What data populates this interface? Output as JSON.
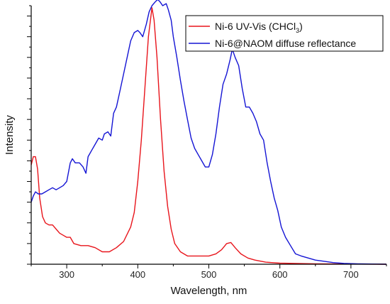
{
  "chart_data": {
    "type": "line",
    "xlabel": "Wavelength, nm",
    "ylabel": "Intensity",
    "xlim": [
      250,
      750
    ],
    "ylim": [
      0,
      1.25
    ],
    "x_ticks": [
      300,
      400,
      500,
      600,
      700
    ],
    "y_ticks_shown_without_labels": true,
    "legend": {
      "placement": "top-right"
    },
    "series": [
      {
        "name_main": "Ni-6 UV-Vis (CHCl",
        "name_sub": "3",
        "name_tail": ")",
        "color": "#e8141b",
        "points": [
          [
            250,
            0.48
          ],
          [
            253,
            0.52
          ],
          [
            256,
            0.52
          ],
          [
            259,
            0.46
          ],
          [
            262,
            0.32
          ],
          [
            266,
            0.23
          ],
          [
            270,
            0.2
          ],
          [
            275,
            0.19
          ],
          [
            280,
            0.19
          ],
          [
            285,
            0.17
          ],
          [
            290,
            0.15
          ],
          [
            295,
            0.14
          ],
          [
            300,
            0.13
          ],
          [
            305,
            0.13
          ],
          [
            310,
            0.1
          ],
          [
            320,
            0.09
          ],
          [
            330,
            0.09
          ],
          [
            340,
            0.08
          ],
          [
            350,
            0.06
          ],
          [
            360,
            0.06
          ],
          [
            370,
            0.08
          ],
          [
            380,
            0.11
          ],
          [
            390,
            0.18
          ],
          [
            395,
            0.25
          ],
          [
            400,
            0.4
          ],
          [
            405,
            0.6
          ],
          [
            410,
            0.85
          ],
          [
            415,
            1.1
          ],
          [
            420,
            1.24
          ],
          [
            423,
            1.18
          ],
          [
            427,
            1.0
          ],
          [
            432,
            0.7
          ],
          [
            437,
            0.45
          ],
          [
            442,
            0.28
          ],
          [
            447,
            0.17
          ],
          [
            452,
            0.1
          ],
          [
            460,
            0.06
          ],
          [
            470,
            0.04
          ],
          [
            480,
            0.04
          ],
          [
            490,
            0.04
          ],
          [
            500,
            0.04
          ],
          [
            510,
            0.05
          ],
          [
            518,
            0.07
          ],
          [
            525,
            0.1
          ],
          [
            531,
            0.105
          ],
          [
            537,
            0.08
          ],
          [
            545,
            0.05
          ],
          [
            555,
            0.03
          ],
          [
            565,
            0.02
          ],
          [
            580,
            0.01
          ],
          [
            600,
            0.005
          ],
          [
            650,
            0.002
          ],
          [
            700,
            0.001
          ],
          [
            750,
            0.0
          ]
        ]
      },
      {
        "name": "Ni-6@NAOM diffuse reflectance",
        "color": "#1414d4",
        "points": [
          [
            250,
            0.3
          ],
          [
            253,
            0.33
          ],
          [
            256,
            0.35
          ],
          [
            260,
            0.34
          ],
          [
            265,
            0.34
          ],
          [
            270,
            0.35
          ],
          [
            275,
            0.36
          ],
          [
            280,
            0.37
          ],
          [
            285,
            0.36
          ],
          [
            290,
            0.37
          ],
          [
            295,
            0.38
          ],
          [
            300,
            0.4
          ],
          [
            305,
            0.49
          ],
          [
            308,
            0.51
          ],
          [
            312,
            0.49
          ],
          [
            318,
            0.49
          ],
          [
            323,
            0.47
          ],
          [
            327,
            0.44
          ],
          [
            330,
            0.52
          ],
          [
            335,
            0.55
          ],
          [
            340,
            0.58
          ],
          [
            345,
            0.61
          ],
          [
            350,
            0.6
          ],
          [
            353,
            0.63
          ],
          [
            358,
            0.64
          ],
          [
            362,
            0.62
          ],
          [
            366,
            0.73
          ],
          [
            370,
            0.76
          ],
          [
            375,
            0.84
          ],
          [
            380,
            0.92
          ],
          [
            385,
            1.0
          ],
          [
            390,
            1.08
          ],
          [
            395,
            1.12
          ],
          [
            400,
            1.13
          ],
          [
            403,
            1.12
          ],
          [
            407,
            1.1
          ],
          [
            412,
            1.16
          ],
          [
            416,
            1.22
          ],
          [
            420,
            1.25
          ],
          [
            425,
            1.27
          ],
          [
            428,
            1.28
          ],
          [
            431,
            1.27
          ],
          [
            435,
            1.25
          ],
          [
            440,
            1.26
          ],
          [
            443,
            1.23
          ],
          [
            447,
            1.18
          ],
          [
            450,
            1.1
          ],
          [
            455,
            1.0
          ],
          [
            460,
            0.89
          ],
          [
            465,
            0.79
          ],
          [
            470,
            0.7
          ],
          [
            475,
            0.61
          ],
          [
            480,
            0.56
          ],
          [
            485,
            0.53
          ],
          [
            490,
            0.5
          ],
          [
            495,
            0.47
          ],
          [
            500,
            0.47
          ],
          [
            505,
            0.53
          ],
          [
            510,
            0.63
          ],
          [
            515,
            0.76
          ],
          [
            520,
            0.87
          ],
          [
            525,
            0.92
          ],
          [
            530,
            0.99
          ],
          [
            533,
            1.04
          ],
          [
            537,
            1.0
          ],
          [
            542,
            0.96
          ],
          [
            547,
            0.85
          ],
          [
            552,
            0.76
          ],
          [
            557,
            0.76
          ],
          [
            562,
            0.73
          ],
          [
            567,
            0.69
          ],
          [
            572,
            0.63
          ],
          [
            577,
            0.6
          ],
          [
            582,
            0.49
          ],
          [
            587,
            0.4
          ],
          [
            592,
            0.32
          ],
          [
            597,
            0.26
          ],
          [
            602,
            0.18
          ],
          [
            608,
            0.13
          ],
          [
            615,
            0.09
          ],
          [
            622,
            0.05
          ],
          [
            630,
            0.04
          ],
          [
            640,
            0.03
          ],
          [
            650,
            0.02
          ],
          [
            660,
            0.015
          ],
          [
            675,
            0.008
          ],
          [
            690,
            0.004
          ],
          [
            710,
            0.002
          ],
          [
            730,
            0.001
          ],
          [
            750,
            0.0
          ]
        ]
      }
    ]
  }
}
